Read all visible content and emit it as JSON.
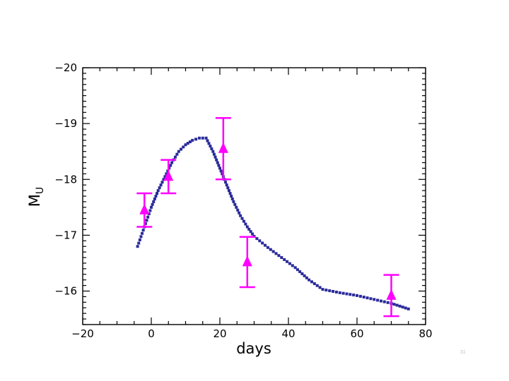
{
  "chart_data": {
    "type": "scatter",
    "xlabel": "days",
    "ylabel_main": "M",
    "ylabel_sub": "U",
    "xlim": [
      -20,
      80
    ],
    "ylim": [
      -15.4,
      -20
    ],
    "x_ticks": [
      -20,
      0,
      20,
      40,
      60,
      80
    ],
    "x_tick_labels": [
      "−20",
      "0",
      "20",
      "40",
      "60",
      "80"
    ],
    "y_ticks": [
      -20,
      -19,
      -18,
      -17,
      -16
    ],
    "y_tick_labels": [
      "−20",
      "−19",
      "−18",
      "−17",
      "−16"
    ],
    "grid": false,
    "series": [
      {
        "kind": "dotted-curve",
        "color": "#2a2a9a",
        "points": [
          [
            -4,
            -16.8
          ],
          [
            -2,
            -17.15
          ],
          [
            0,
            -17.5
          ],
          [
            2,
            -17.8
          ],
          [
            4,
            -18.05
          ],
          [
            6,
            -18.3
          ],
          [
            8,
            -18.5
          ],
          [
            10,
            -18.62
          ],
          [
            12,
            -18.7
          ],
          [
            14,
            -18.74
          ],
          [
            16,
            -18.74
          ],
          [
            18,
            -18.5
          ],
          [
            20,
            -18.2
          ],
          [
            22,
            -17.9
          ],
          [
            24,
            -17.6
          ],
          [
            26,
            -17.35
          ],
          [
            28,
            -17.15
          ],
          [
            30,
            -16.98
          ],
          [
            34,
            -16.78
          ],
          [
            38,
            -16.6
          ],
          [
            42,
            -16.42
          ],
          [
            46,
            -16.2
          ],
          [
            50,
            -16.03
          ],
          [
            55,
            -15.97
          ],
          [
            60,
            -15.92
          ],
          [
            65,
            -15.85
          ],
          [
            70,
            -15.78
          ],
          [
            75,
            -15.68
          ]
        ]
      },
      {
        "kind": "error-points",
        "color": "#ff00ff",
        "points": [
          {
            "x": -2,
            "y": -17.45,
            "yerr": 0.3
          },
          {
            "x": 5,
            "y": -18.05,
            "yerr": 0.3
          },
          {
            "x": 21,
            "y": -18.55,
            "yerr": 0.55
          },
          {
            "x": 28,
            "y": -16.52,
            "yerr": 0.45
          },
          {
            "x": 70,
            "y": -15.92,
            "yerr": 0.37
          }
        ]
      }
    ]
  },
  "slide_number": "31"
}
